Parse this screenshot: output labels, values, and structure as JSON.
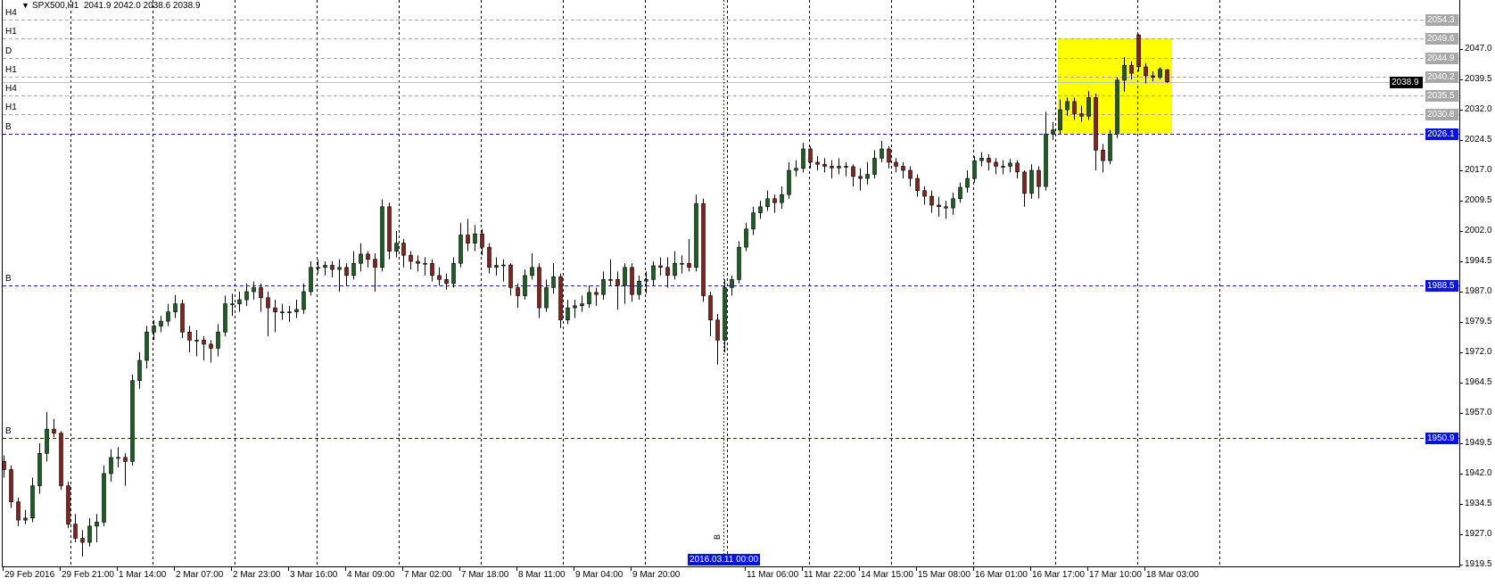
{
  "title": {
    "symbol_timeframe": "SPX500,H1",
    "ohlc": "2041.9 2042.0 2038.6 2038.9",
    "icon": "triangle-down-icon"
  },
  "colors": {
    "bull": "#1f5c22",
    "bear": "#8e1e1e",
    "grid": "#000000",
    "level_gray": "#a8a8a8",
    "level_blue": "#1a1a9c",
    "blue_label": "#0a14d8",
    "rectangle": "#ffff00",
    "current_price_bg": "#000000"
  },
  "chart_data": {
    "type": "candlestick",
    "symbol": "SPX500",
    "timeframe": "H1",
    "ylim": [
      1918.8,
      2059.1
    ],
    "grid": true,
    "y_ticks": [
      "2047.0",
      "2039.5",
      "2032.0",
      "2024.5",
      "2017.0",
      "2009.5",
      "2002.0",
      "1994.5",
      "1987.0",
      "1979.5",
      "1972.0",
      "1964.5",
      "1957.0",
      "1949.5",
      "1942.0",
      "1934.5",
      "1927.0",
      "1919.5"
    ],
    "x_tick_labels": [
      "29 Feb 2016",
      "29 Feb 21:00",
      "1 Mar 14:00",
      "2 Mar 07:00",
      "2 Mar 23:00",
      "3 Mar 16:00",
      "4 Mar 09:00",
      "7 Mar 02:00",
      "7 Mar 18:00",
      "8 Mar 11:00",
      "9 Mar 04:00",
      "9 Mar 20:00",
      "",
      "11 Mar 06:00",
      "11 Mar 22:00",
      "14 Mar 15:00",
      "15 Mar 08:00",
      "16 Mar 01:00",
      "16 Mar 17:00",
      "17 Mar 10:00",
      "18 Mar 03:00"
    ],
    "current_price": 2038.9,
    "levels": [
      {
        "price": 2054.3,
        "label": "H4",
        "style": "gray"
      },
      {
        "price": 2049.6,
        "label": "H1",
        "style": "gray"
      },
      {
        "price": 2044.9,
        "label": "D",
        "style": "gray"
      },
      {
        "price": 2040.2,
        "label": "H1",
        "style": "gray"
      },
      {
        "price": 2035.5,
        "label": "H4",
        "style": "gray"
      },
      {
        "price": 2030.8,
        "label": "H1",
        "style": "gray"
      },
      {
        "price": 2026.1,
        "label": "B",
        "style": "blue"
      },
      {
        "price": 1988.5,
        "label": "B",
        "style": "blue"
      },
      {
        "price": 1950.9,
        "label": "B",
        "style": "blue"
      }
    ],
    "rectangle": {
      "top": 2049.6,
      "bottom": 2026.1,
      "from_bar": 147.75,
      "to_bar": 163.75
    },
    "time_marker": {
      "label": "2016.03.11 00:00",
      "bar": 100.9,
      "tag": "B"
    },
    "candles": [
      [
        1945,
        1946.5,
        1941,
        1943
      ],
      [
        1943,
        1944,
        1933.5,
        1935
      ],
      [
        1935,
        1936,
        1929,
        1930.5
      ],
      [
        1930.5,
        1933,
        1929.5,
        1931
      ],
      [
        1931,
        1941,
        1930,
        1939
      ],
      [
        1939,
        1949.5,
        1937,
        1947
      ],
      [
        1947,
        1957.2,
        1945,
        1953
      ],
      [
        1953,
        1955.5,
        1951,
        1952
      ],
      [
        1952,
        1952.5,
        1938,
        1939
      ],
      [
        1939,
        1940,
        1928.5,
        1929.5
      ],
      [
        1929.5,
        1932,
        1925,
        1926
      ],
      [
        1926,
        1928,
        1921.5,
        1925
      ],
      [
        1925,
        1931,
        1924,
        1929
      ],
      [
        1929,
        1932,
        1925,
        1930
      ],
      [
        1930,
        1944,
        1929,
        1942
      ],
      [
        1942,
        1948,
        1940,
        1946
      ],
      [
        1946,
        1948.5,
        1943.5,
        1946
      ],
      [
        1946,
        1947,
        1939,
        1945
      ],
      [
        1945,
        1966.5,
        1944,
        1965
      ],
      [
        1965,
        1972,
        1963,
        1970
      ],
      [
        1970,
        1978.5,
        1968,
        1977
      ],
      [
        1977,
        1980,
        1975,
        1978.5
      ],
      [
        1978.5,
        1981,
        1977,
        1979.7
      ],
      [
        1979.7,
        1984,
        1978.5,
        1982
      ],
      [
        1982,
        1986.2,
        1980.5,
        1984
      ],
      [
        1984,
        1985,
        1975.5,
        1977
      ],
      [
        1977,
        1978.5,
        1972,
        1975
      ],
      [
        1975,
        1977.5,
        1971,
        1975
      ],
      [
        1975,
        1976,
        1970,
        1974
      ],
      [
        1974,
        1975,
        1969.5,
        1973
      ],
      [
        1973,
        1979,
        1971,
        1977
      ],
      [
        1977,
        1986,
        1976,
        1984
      ],
      [
        1984,
        1986.5,
        1981,
        1984
      ],
      [
        1984,
        1987,
        1982,
        1985
      ],
      [
        1985,
        1989,
        1983.5,
        1987
      ],
      [
        1987,
        1989.5,
        1985,
        1988
      ],
      [
        1988,
        1989,
        1982,
        1985.5
      ],
      [
        1985.5,
        1987,
        1976,
        1983
      ],
      [
        1983,
        1985,
        1977,
        1982
      ],
      [
        1982,
        1984,
        1980,
        1982
      ],
      [
        1982,
        1983.5,
        1979.5,
        1982
      ],
      [
        1982,
        1985,
        1980.5,
        1982.6
      ],
      [
        1982.6,
        1989,
        1981.5,
        1987
      ],
      [
        1987,
        1994.5,
        1986,
        1993
      ],
      [
        1993,
        1995,
        1991.5,
        1993
      ],
      [
        1993,
        1994.5,
        1991,
        1993.5
      ],
      [
        1993.5,
        1994.5,
        1990.5,
        1992.5
      ],
      [
        1992.5,
        1995,
        1987,
        1993
      ],
      [
        1993,
        1994,
        1988.5,
        1991
      ],
      [
        1991,
        1997,
        1990,
        1994
      ],
      [
        1994,
        1999,
        1992,
        1996.3
      ],
      [
        1996.3,
        1997,
        1993,
        1995
      ],
      [
        1995,
        1996.5,
        1987,
        1993
      ],
      [
        1993,
        2009.8,
        1992,
        2008
      ],
      [
        2008,
        2009,
        1995,
        1997
      ],
      [
        1997,
        2002,
        1995.5,
        1999
      ],
      [
        1999,
        2000,
        1993,
        1996
      ],
      [
        1996,
        1997,
        1992.5,
        1994.5
      ],
      [
        1994.5,
        1996,
        1992,
        1994
      ],
      [
        1994,
        1995.5,
        1991,
        1994
      ],
      [
        1994,
        1995,
        1989.5,
        1991
      ],
      [
        1991,
        1993,
        1988.5,
        1990
      ],
      [
        1990,
        1991.5,
        1987.5,
        1989
      ],
      [
        1989,
        1995.5,
        1988,
        1994
      ],
      [
        1994,
        2004,
        1993,
        2001
      ],
      [
        2001,
        2005,
        1997,
        1999
      ],
      [
        1999,
        2003.5,
        1997,
        2001.3
      ],
      [
        2001.3,
        2002.5,
        1996,
        1998
      ],
      [
        1998,
        1999,
        1991.5,
        1993
      ],
      [
        1993,
        1995.5,
        1991,
        1993.5
      ],
      [
        1993.5,
        1995,
        1989.5,
        1993.6
      ],
      [
        1993.6,
        1994,
        1986,
        1988
      ],
      [
        1988,
        1989,
        1983,
        1986
      ],
      [
        1986,
        1992.5,
        1985,
        1991
      ],
      [
        1991,
        1996.5,
        1990,
        1993
      ],
      [
        1993,
        1994,
        1980.5,
        1983
      ],
      [
        1983,
        1990,
        1982,
        1988
      ],
      [
        1988,
        1994,
        1986.5,
        1990.7
      ],
      [
        1990.7,
        1991.5,
        1978,
        1980
      ],
      [
        1980,
        1985,
        1979,
        1983
      ],
      [
        1983,
        1985,
        1980.5,
        1983.5
      ],
      [
        1983.5,
        1986,
        1982,
        1984
      ],
      [
        1984,
        1988.5,
        1983,
        1986.8
      ],
      [
        1986.8,
        1988,
        1983.5,
        1986.3
      ],
      [
        1986.3,
        1992,
        1985,
        1990
      ],
      [
        1990,
        1995,
        1988.5,
        1990
      ],
      [
        1990,
        1992,
        1982.5,
        1988.5
      ],
      [
        1988.5,
        1994,
        1984,
        1993
      ],
      [
        1993,
        1994,
        1984.5,
        1986.3
      ],
      [
        1986.3,
        1991,
        1985,
        1989.6
      ],
      [
        1989.6,
        1992,
        1986.5,
        1990
      ],
      [
        1990,
        1994.5,
        1988.5,
        1993.4
      ],
      [
        1993.4,
        1995.5,
        1991,
        1993
      ],
      [
        1993,
        1995.5,
        1988,
        1991
      ],
      [
        1991,
        1997,
        1990,
        1994
      ],
      [
        1994,
        1996,
        1991.5,
        1994
      ],
      [
        1994,
        2000,
        1992,
        1993
      ],
      [
        1993,
        2011,
        1992,
        2008.8
      ],
      [
        2008.8,
        2010,
        1984.5,
        1986
      ],
      [
        1986,
        1987,
        1976,
        1980
      ],
      [
        1980,
        1981.5,
        1969,
        1975
      ],
      [
        1975,
        1990,
        1972,
        1988
      ],
      [
        1988,
        1991,
        1986,
        1990
      ],
      [
        1990,
        1999.5,
        1989,
        1998
      ],
      [
        1998,
        2004,
        1997,
        2002.5
      ],
      [
        2002.5,
        2008,
        2001,
        2006.5
      ],
      [
        2006.5,
        2009.5,
        2005,
        2008
      ],
      [
        2008,
        2012,
        2007,
        2010
      ],
      [
        2010,
        2011,
        2006.5,
        2009
      ],
      [
        2009,
        2013,
        2007.5,
        2011
      ],
      [
        2011,
        2019,
        2010,
        2017
      ],
      [
        2017,
        2019.5,
        2015.5,
        2017.5
      ],
      [
        2017.5,
        2023.8,
        2016.5,
        2022.3
      ],
      [
        2022.3,
        2023,
        2017.5,
        2019
      ],
      [
        2019,
        2020.5,
        2017,
        2018.5
      ],
      [
        2018.5,
        2020,
        2016.5,
        2018
      ],
      [
        2018,
        2019.5,
        2015,
        2017.6
      ],
      [
        2017.6,
        2020,
        2016,
        2018
      ],
      [
        2018,
        2019,
        2015.5,
        2017.9
      ],
      [
        2017.9,
        2018.5,
        2013,
        2015.5
      ],
      [
        2015.5,
        2017.5,
        2012,
        2015
      ],
      [
        2015,
        2019,
        2013.5,
        2016
      ],
      [
        2016,
        2022,
        2015,
        2020
      ],
      [
        2020,
        2024.3,
        2019,
        2022.3
      ],
      [
        2022.3,
        2023,
        2017.5,
        2019
      ],
      [
        2019,
        2020,
        2016.5,
        2018
      ],
      [
        2018,
        2019,
        2015,
        2017
      ],
      [
        2017,
        2018,
        2013,
        2015
      ],
      [
        2015,
        2016,
        2010.5,
        2012
      ],
      [
        2012,
        2013,
        2008.5,
        2010.6
      ],
      [
        2010.6,
        2012,
        2006.5,
        2008.4
      ],
      [
        2008.4,
        2010.5,
        2005.5,
        2008
      ],
      [
        2008,
        2009.5,
        2005,
        2007.7
      ],
      [
        2007.7,
        2011.5,
        2006,
        2010
      ],
      [
        2010,
        2014,
        2009,
        2012.8
      ],
      [
        2012.8,
        2017,
        2011.5,
        2015
      ],
      [
        2015,
        2020.5,
        2014,
        2019.4
      ],
      [
        2019.4,
        2021.5,
        2018,
        2020
      ],
      [
        2020,
        2021,
        2017,
        2019
      ],
      [
        2019,
        2020,
        2016,
        2018
      ],
      [
        2018,
        2019.5,
        2016,
        2018
      ],
      [
        2018,
        2019.8,
        2016.5,
        2018.8
      ],
      [
        2018.8,
        2019.5,
        2015,
        2016.6
      ],
      [
        2016.6,
        2017,
        2008,
        2011.3
      ],
      [
        2011.3,
        2018.5,
        2010,
        2017
      ],
      [
        2017,
        2018,
        2010,
        2013
      ],
      [
        2013,
        2031.5,
        2012,
        2026
      ],
      [
        2026,
        2029,
        2024.5,
        2027
      ],
      [
        2027,
        2034.5,
        2026,
        2032
      ],
      [
        2032,
        2035,
        2030.5,
        2034
      ],
      [
        2034,
        2035,
        2029.5,
        2031
      ],
      [
        2031,
        2033,
        2029,
        2030.4
      ],
      [
        2030.4,
        2036.6,
        2029.5,
        2035
      ],
      [
        2035,
        2036,
        2017,
        2022
      ],
      [
        2022,
        2023.5,
        2016.5,
        2019.4
      ],
      [
        2019.4,
        2027,
        2018.5,
        2026
      ],
      [
        2026,
        2040,
        2025,
        2039.3
      ],
      [
        2039.3,
        2045,
        2036.5,
        2043
      ],
      [
        2043,
        2044,
        2039.5,
        2041
      ],
      [
        2050.5,
        2050.7,
        2041.5,
        2042.6
      ],
      [
        2042.6,
        2043.5,
        2038.5,
        2040.4
      ],
      [
        2040.4,
        2041.5,
        2039,
        2040
      ],
      [
        2040,
        2042.5,
        2039.5,
        2042
      ],
      [
        2041.9,
        2042.0,
        2038.6,
        2038.9
      ]
    ]
  }
}
